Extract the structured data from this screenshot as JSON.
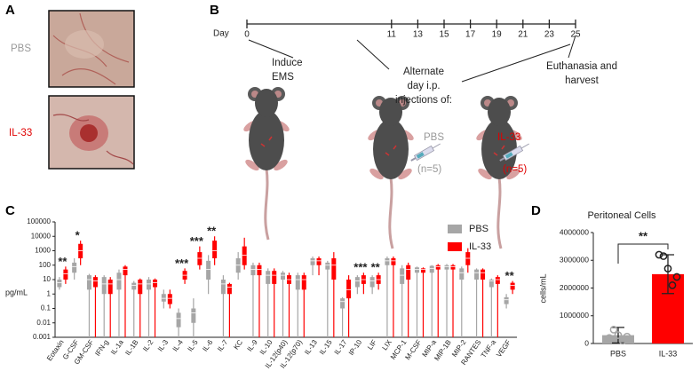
{
  "panel_labels": [
    "A",
    "B",
    "C",
    "D"
  ],
  "panel_a": {
    "top_label": "PBS",
    "bottom_label": "IL-33"
  },
  "panel_b": {
    "axis_label": "Day",
    "days": [
      0,
      11,
      13,
      15,
      17,
      19,
      21,
      23,
      25
    ],
    "induce": [
      "Induce",
      "EMS"
    ],
    "injections": [
      "Alternate",
      "day i.p.",
      "injections of:"
    ],
    "group_1": "PBS",
    "group_1_n": "(n=5)",
    "group_2": "IL-33",
    "group_2_n": "(n=5)",
    "end": [
      "Euthanasia and",
      "harvest"
    ]
  },
  "chart_data": [
    {
      "type": "box",
      "y_label": "pg/mL",
      "log_scale": true,
      "ylim": [
        0.001,
        100000
      ],
      "yticks": [
        0.001,
        0.01,
        0.1,
        1,
        10,
        100,
        1000,
        10000,
        100000
      ],
      "legend": "top-right",
      "categories": [
        "Eotaxin",
        "G-CSF",
        "GM-CSF",
        "IFN-g",
        "IL-1a",
        "IL-1B",
        "IL-2",
        "IL-3",
        "IL-4",
        "IL-5",
        "IL-6",
        "IL-7",
        "KC",
        "IL-9",
        "IL-10",
        "IL-12(p40)",
        "IL-12(p70)",
        "IL-13",
        "IL-15",
        "IL-17",
        "IP-10",
        "LIF",
        "LIX",
        "MCP-1",
        "M-CSF",
        "MIP-a",
        "MIP-1B",
        "MIP-2",
        "RANTES",
        "TNF-a",
        "VEGF"
      ],
      "significance": [
        "**",
        "*",
        null,
        null,
        null,
        null,
        null,
        null,
        "***",
        "***",
        "**",
        null,
        null,
        null,
        null,
        null,
        null,
        null,
        null,
        null,
        "***",
        "**",
        null,
        null,
        null,
        null,
        null,
        null,
        null,
        null,
        "**"
      ],
      "series": [
        {
          "name": "PBS",
          "color": "#a6a6a6",
          "values": [
            [
              2,
              3,
              6,
              10,
              15
            ],
            [
              10,
              30,
              80,
              150,
              300
            ],
            [
              0.001,
              2,
              10,
              20,
              25
            ],
            [
              0.001,
              1,
              5,
              15,
              20
            ],
            [
              0.001,
              2,
              10,
              30,
              50
            ],
            [
              0.001,
              2,
              4,
              6,
              8
            ],
            [
              0.001,
              2,
              5,
              10,
              15
            ],
            [
              0.1,
              0.3,
              0.5,
              1,
              2
            ],
            [
              0.001,
              0.005,
              0.02,
              0.05,
              0.1
            ],
            [
              0.001,
              0.01,
              0.05,
              0.1,
              0.5
            ],
            [
              1,
              10,
              50,
              200,
              500
            ],
            [
              0.001,
              1,
              5,
              10,
              20
            ],
            [
              10,
              30,
              100,
              300,
              800
            ],
            [
              0.001,
              20,
              50,
              100,
              150
            ],
            [
              0.001,
              5,
              20,
              40,
              60
            ],
            [
              0.001,
              10,
              20,
              30,
              40
            ],
            [
              0.001,
              2,
              10,
              20,
              30
            ],
            [
              20,
              100,
              200,
              300,
              400
            ],
            [
              0.001,
              50,
              100,
              150,
              200
            ],
            [
              0.001,
              0.1,
              0.3,
              0.5,
              0.6
            ],
            [
              1,
              3,
              8,
              15,
              20
            ],
            [
              1,
              3,
              8,
              15,
              20
            ],
            [
              0.001,
              100,
              200,
              300,
              400
            ],
            [
              0.001,
              5,
              20,
              60,
              100
            ],
            [
              0.001,
              30,
              50,
              70,
              80
            ],
            [
              0.001,
              30,
              60,
              90,
              100
            ],
            [
              0.001,
              50,
              80,
              100,
              120
            ],
            [
              0.001,
              10,
              30,
              60,
              80
            ],
            [
              0.001,
              10,
              30,
              50,
              60
            ],
            [
              0.001,
              3,
              8,
              10,
              12
            ],
            [
              0.1,
              0.2,
              0.4,
              0.6,
              1
            ]
          ]
        },
        {
          "name": "IL-33",
          "color": "#ff0000",
          "values": [
            [
              5,
              10,
              25,
              50,
              80
            ],
            [
              100,
              300,
              1000,
              3000,
              5000
            ],
            [
              0.001,
              3,
              8,
              15,
              20
            ],
            [
              0.001,
              1,
              5,
              10,
              15
            ],
            [
              0.001,
              20,
              50,
              80,
              100
            ],
            [
              0.001,
              1,
              5,
              10,
              12
            ],
            [
              0.001,
              3,
              6,
              10,
              12
            ],
            [
              0.1,
              0.2,
              0.5,
              1,
              2
            ],
            [
              5,
              10,
              20,
              40,
              60
            ],
            [
              50,
              100,
              300,
              800,
              2000
            ],
            [
              100,
              300,
              1000,
              5000,
              10000
            ],
            [
              0.001,
              1,
              3,
              5,
              6
            ],
            [
              50,
              100,
              500,
              2000,
              8000
            ],
            [
              0.001,
              20,
              50,
              100,
              150
            ],
            [
              0.001,
              5,
              20,
              40,
              60
            ],
            [
              0.001,
              5,
              10,
              20,
              30
            ],
            [
              0.001,
              2,
              10,
              20,
              30
            ],
            [
              20,
              100,
              200,
              300,
              400
            ],
            [
              0.001,
              10,
              100,
              300,
              800
            ],
            [
              0.001,
              0.5,
              2,
              10,
              20
            ],
            [
              1,
              5,
              10,
              20,
              30
            ],
            [
              2,
              5,
              10,
              20,
              30
            ],
            [
              0.001,
              100,
              200,
              300,
              400
            ],
            [
              0.001,
              10,
              50,
              100,
              150
            ],
            [
              0.001,
              30,
              50,
              60,
              70
            ],
            [
              0.001,
              50,
              80,
              100,
              120
            ],
            [
              0.001,
              50,
              80,
              100,
              120
            ],
            [
              30,
              100,
              300,
              800,
              1500
            ],
            [
              0.001,
              10,
              30,
              50,
              60
            ],
            [
              0.001,
              5,
              10,
              15,
              20
            ],
            [
              1,
              2,
              4,
              6,
              8
            ]
          ]
        }
      ]
    },
    {
      "type": "bar",
      "title": "Peritoneal Cells",
      "y_label": "cells/mL",
      "ylim": [
        0,
        4000000
      ],
      "yticks": [
        0,
        1000000,
        2000000,
        3000000,
        4000000
      ],
      "categories": [
        "PBS",
        "IL-33"
      ],
      "values": [
        300000,
        2500000
      ],
      "errors": [
        280000,
        700000
      ],
      "colors": [
        "#a6a6a6",
        "#ff0000"
      ],
      "point_colors": [
        "#a6a6a6",
        "#222222"
      ],
      "points": [
        [
          200000,
          500000,
          300000,
          100000,
          250000
        ],
        [
          3200000,
          3150000,
          2700000,
          2100000,
          2400000
        ]
      ],
      "significance": "**"
    }
  ]
}
